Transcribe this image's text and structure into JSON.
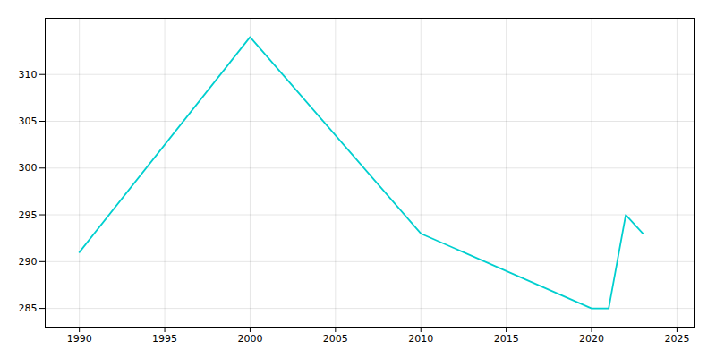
{
  "chart_data": {
    "type": "line",
    "x": [
      1990,
      2000,
      2010,
      2020,
      2021,
      2022,
      2023
    ],
    "values": [
      291,
      314,
      293,
      285,
      285,
      295,
      293
    ],
    "color": "#00CFCF",
    "xlim": [
      1988,
      2026
    ],
    "ylim": [
      283,
      316
    ],
    "xticks": [
      1990,
      1995,
      2000,
      2005,
      2010,
      2015,
      2020,
      2025
    ],
    "yticks": [
      285,
      290,
      295,
      300,
      305,
      310
    ],
    "grid": true
  }
}
